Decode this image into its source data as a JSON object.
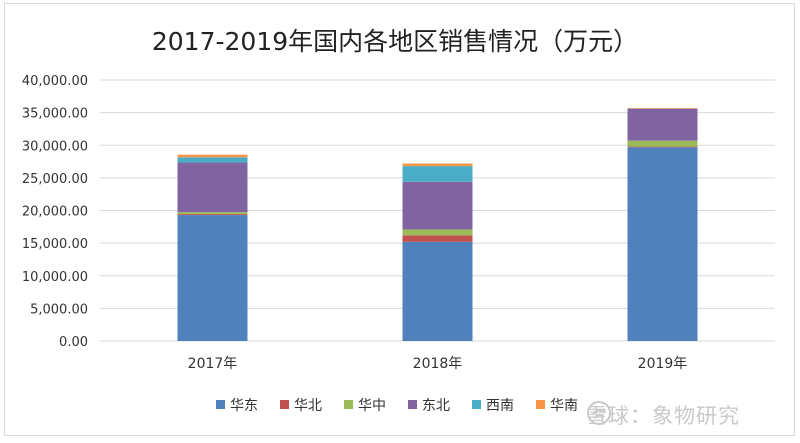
{
  "chart_data": {
    "type": "bar",
    "stacked": true,
    "title": "2017-2019年国内各地区销售情况（万元）",
    "categories": [
      "2017年",
      "2018年",
      "2019年"
    ],
    "ylim": [
      0,
      40000
    ],
    "yticks": [
      0,
      5000,
      10000,
      15000,
      20000,
      25000,
      30000,
      35000,
      40000
    ],
    "ytick_labels": [
      "0.00",
      "5,000.00",
      "10,000.00",
      "15,000.00",
      "20,000.00",
      "25,000.00",
      "30,000.00",
      "35,000.00",
      "40,000.00"
    ],
    "grid": true,
    "legend_position": "bottom",
    "series": [
      {
        "name": "华东",
        "color": "#4f81bd",
        "values": [
          19300,
          15200,
          29700
        ]
      },
      {
        "name": "华北",
        "color": "#c0504d",
        "values": [
          150,
          1000,
          100
        ]
      },
      {
        "name": "华中",
        "color": "#9bbb59",
        "values": [
          300,
          900,
          900
        ]
      },
      {
        "name": "东北",
        "color": "#8064a2",
        "values": [
          7600,
          7300,
          4900
        ]
      },
      {
        "name": "西南",
        "color": "#4bacc6",
        "values": [
          800,
          2400,
          0
        ]
      },
      {
        "name": "华南",
        "color": "#f79646",
        "values": [
          400,
          400,
          100
        ]
      }
    ]
  },
  "watermark": {
    "text": "雪球：象物研究",
    "icon": "snowball-logo-icon"
  }
}
